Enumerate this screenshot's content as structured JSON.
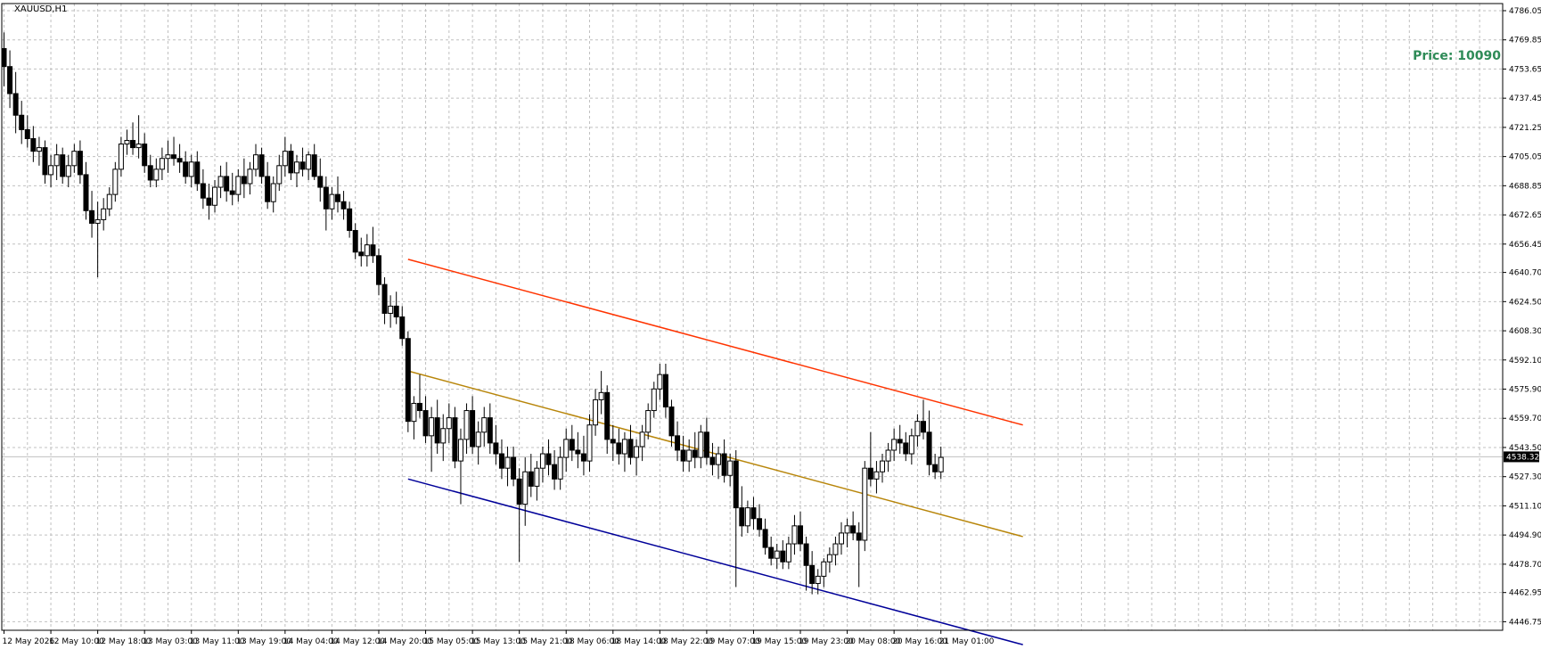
{
  "symbol_title": "XAUUSD,H1",
  "overlay": {
    "text": "Price: 10090",
    "color": "#2e8b57"
  },
  "current_price_label": "4538.32",
  "colors": {
    "background": "#ffffff",
    "grid": "#c0c0c0",
    "axis": "#000000",
    "bull_fill": "#ffffff",
    "bear_fill": "#000000",
    "candle_outline": "#000000",
    "upper_line": "#ff3300",
    "middle_line": "#b8860b",
    "lower_line": "#000099",
    "bid_line": "#c0c0c0"
  },
  "chart_data": {
    "type": "candlestick",
    "timeframe": "H1",
    "grid": true,
    "ylim": [
      4442,
      4790
    ],
    "y_ticks": [
      "4786.05",
      "4769.85",
      "4753.65",
      "4737.45",
      "4721.25",
      "4705.05",
      "4688.85",
      "4672.65",
      "4656.45",
      "4640.70",
      "4624.50",
      "4608.30",
      "4592.10",
      "4575.90",
      "4559.70",
      "4543.50",
      "4527.30",
      "4511.10",
      "4494.90",
      "4478.70",
      "4462.95",
      "4446.75"
    ],
    "x_ticks": [
      {
        "bar": 0,
        "label": "12 May 2026"
      },
      {
        "bar": 8,
        "label": "12 May 10:00"
      },
      {
        "bar": 16,
        "label": "12 May 18:00"
      },
      {
        "bar": 24,
        "label": "13 May 03:00"
      },
      {
        "bar": 32,
        "label": "13 May 11:00"
      },
      {
        "bar": 40,
        "label": "13 May 19:00"
      },
      {
        "bar": 48,
        "label": "14 May 04:00"
      },
      {
        "bar": 56,
        "label": "14 May 12:00"
      },
      {
        "bar": 64,
        "label": "14 May 20:00"
      },
      {
        "bar": 72,
        "label": "15 May 05:00"
      },
      {
        "bar": 80,
        "label": "15 May 13:00"
      },
      {
        "bar": 88,
        "label": "15 May 21:00"
      },
      {
        "bar": 96,
        "label": "18 May 06:00"
      },
      {
        "bar": 104,
        "label": "18 May 14:00"
      },
      {
        "bar": 112,
        "label": "18 May 22:00"
      },
      {
        "bar": 120,
        "label": "19 May 07:00"
      },
      {
        "bar": 128,
        "label": "19 May 15:00"
      },
      {
        "bar": 136,
        "label": "19 May 23:00"
      },
      {
        "bar": 144,
        "label": "20 May 08:00"
      },
      {
        "bar": 152,
        "label": "20 May 16:00"
      },
      {
        "bar": 160,
        "label": "21 May 01:00"
      }
    ],
    "current_price": 4538.32,
    "ohlc": [
      [
        4765,
        4774,
        4744,
        4755
      ],
      [
        4755,
        4764,
        4732,
        4740
      ],
      [
        4740,
        4752,
        4718,
        4728
      ],
      [
        4728,
        4736,
        4712,
        4720
      ],
      [
        4720,
        4728,
        4710,
        4715
      ],
      [
        4715,
        4722,
        4702,
        4708
      ],
      [
        4708,
        4716,
        4700,
        4710
      ],
      [
        4710,
        4714,
        4690,
        4695
      ],
      [
        4695,
        4706,
        4688,
        4700
      ],
      [
        4700,
        4712,
        4692,
        4706
      ],
      [
        4706,
        4710,
        4690,
        4694
      ],
      [
        4694,
        4706,
        4688,
        4700
      ],
      [
        4700,
        4712,
        4696,
        4708
      ],
      [
        4708,
        4714,
        4690,
        4695
      ],
      [
        4695,
        4702,
        4670,
        4675
      ],
      [
        4675,
        4686,
        4660,
        4668
      ],
      [
        4668,
        4680,
        4638,
        4670
      ],
      [
        4670,
        4682,
        4664,
        4676
      ],
      [
        4676,
        4688,
        4672,
        4684
      ],
      [
        4684,
        4702,
        4680,
        4698
      ],
      [
        4698,
        4716,
        4694,
        4712
      ],
      [
        4712,
        4720,
        4706,
        4714
      ],
      [
        4714,
        4724,
        4706,
        4710
      ],
      [
        4710,
        4728,
        4704,
        4712
      ],
      [
        4712,
        4718,
        4696,
        4700
      ],
      [
        4700,
        4706,
        4688,
        4692
      ],
      [
        4692,
        4704,
        4688,
        4698
      ],
      [
        4698,
        4710,
        4692,
        4704
      ],
      [
        4704,
        4714,
        4696,
        4706
      ],
      [
        4706,
        4716,
        4700,
        4704
      ],
      [
        4704,
        4712,
        4696,
        4702
      ],
      [
        4702,
        4708,
        4690,
        4694
      ],
      [
        4694,
        4706,
        4688,
        4702
      ],
      [
        4702,
        4708,
        4686,
        4690
      ],
      [
        4690,
        4698,
        4676,
        4682
      ],
      [
        4682,
        4690,
        4670,
        4678
      ],
      [
        4678,
        4692,
        4674,
        4688
      ],
      [
        4688,
        4700,
        4682,
        4694
      ],
      [
        4694,
        4702,
        4680,
        4686
      ],
      [
        4686,
        4696,
        4678,
        4684
      ],
      [
        4684,
        4698,
        4680,
        4694
      ],
      [
        4694,
        4704,
        4682,
        4690
      ],
      [
        4690,
        4702,
        4684,
        4698
      ],
      [
        4698,
        4712,
        4694,
        4706
      ],
      [
        4706,
        4710,
        4690,
        4694
      ],
      [
        4694,
        4702,
        4676,
        4680
      ],
      [
        4680,
        4694,
        4674,
        4690
      ],
      [
        4690,
        4706,
        4686,
        4700
      ],
      [
        4700,
        4716,
        4694,
        4708
      ],
      [
        4708,
        4712,
        4692,
        4696
      ],
      [
        4696,
        4706,
        4688,
        4702
      ],
      [
        4702,
        4710,
        4694,
        4698
      ],
      [
        4698,
        4708,
        4692,
        4706
      ],
      [
        4706,
        4712,
        4692,
        4694
      ],
      [
        4694,
        4704,
        4680,
        4688
      ],
      [
        4688,
        4694,
        4664,
        4676
      ],
      [
        4676,
        4688,
        4670,
        4684
      ],
      [
        4684,
        4694,
        4674,
        4680
      ],
      [
        4680,
        4686,
        4670,
        4676
      ],
      [
        4676,
        4680,
        4660,
        4664
      ],
      [
        4664,
        4668,
        4648,
        4652
      ],
      [
        4652,
        4660,
        4644,
        4650
      ],
      [
        4650,
        4662,
        4644,
        4656
      ],
      [
        4656,
        4666,
        4646,
        4650
      ],
      [
        4650,
        4654,
        4628,
        4634
      ],
      [
        4634,
        4638,
        4612,
        4618
      ],
      [
        4618,
        4628,
        4610,
        4622
      ],
      [
        4622,
        4630,
        4612,
        4616
      ],
      [
        4616,
        4622,
        4600,
        4604
      ],
      [
        4604,
        4608,
        4552,
        4558
      ],
      [
        4558,
        4572,
        4548,
        4568
      ],
      [
        4568,
        4584,
        4560,
        4564
      ],
      [
        4564,
        4572,
        4546,
        4550
      ],
      [
        4550,
        4566,
        4530,
        4560
      ],
      [
        4560,
        4570,
        4540,
        4546
      ],
      [
        4546,
        4562,
        4536,
        4554
      ],
      [
        4554,
        4568,
        4546,
        4560
      ],
      [
        4560,
        4566,
        4532,
        4536
      ],
      [
        4536,
        4554,
        4512,
        4548
      ],
      [
        4548,
        4568,
        4540,
        4564
      ],
      [
        4564,
        4572,
        4540,
        4544
      ],
      [
        4544,
        4558,
        4534,
        4552
      ],
      [
        4552,
        4566,
        4544,
        4560
      ],
      [
        4560,
        4568,
        4540,
        4546
      ],
      [
        4546,
        4556,
        4534,
        4540
      ],
      [
        4540,
        4548,
        4526,
        4532
      ],
      [
        4532,
        4544,
        4522,
        4538
      ],
      [
        4538,
        4544,
        4522,
        4526
      ],
      [
        4526,
        4532,
        4480,
        4512
      ],
      [
        4512,
        4538,
        4500,
        4530
      ],
      [
        4530,
        4540,
        4516,
        4522
      ],
      [
        4522,
        4536,
        4514,
        4532
      ],
      [
        4532,
        4544,
        4524,
        4540
      ],
      [
        4540,
        4548,
        4528,
        4534
      ],
      [
        4534,
        4542,
        4520,
        4526
      ],
      [
        4526,
        4544,
        4520,
        4538
      ],
      [
        4538,
        4554,
        4530,
        4548
      ],
      [
        4548,
        4556,
        4536,
        4542
      ],
      [
        4542,
        4552,
        4532,
        4540
      ],
      [
        4540,
        4550,
        4528,
        4536
      ],
      [
        4536,
        4562,
        4530,
        4556
      ],
      [
        4556,
        4576,
        4550,
        4570
      ],
      [
        4570,
        4586,
        4562,
        4574
      ],
      [
        4574,
        4578,
        4540,
        4548
      ],
      [
        4548,
        4556,
        4536,
        4546
      ],
      [
        4546,
        4554,
        4534,
        4540
      ],
      [
        4540,
        4552,
        4530,
        4548
      ],
      [
        4548,
        4556,
        4534,
        4538
      ],
      [
        4538,
        4548,
        4528,
        4544
      ],
      [
        4544,
        4556,
        4536,
        4552
      ],
      [
        4552,
        4568,
        4548,
        4564
      ],
      [
        4564,
        4580,
        4560,
        4576
      ],
      [
        4576,
        4590,
        4570,
        4584
      ],
      [
        4584,
        4590,
        4560,
        4566
      ],
      [
        4566,
        4570,
        4544,
        4550
      ],
      [
        4550,
        4558,
        4536,
        4542
      ],
      [
        4542,
        4550,
        4530,
        4536
      ],
      [
        4536,
        4548,
        4530,
        4542
      ],
      [
        4542,
        4552,
        4532,
        4538
      ],
      [
        4538,
        4556,
        4532,
        4552
      ],
      [
        4552,
        4560,
        4534,
        4538
      ],
      [
        4538,
        4546,
        4528,
        4534
      ],
      [
        4534,
        4544,
        4526,
        4540
      ],
      [
        4540,
        4548,
        4524,
        4528
      ],
      [
        4528,
        4540,
        4522,
        4536
      ],
      [
        4536,
        4542,
        4466,
        4510
      ],
      [
        4510,
        4522,
        4494,
        4500
      ],
      [
        4500,
        4514,
        4496,
        4510
      ],
      [
        4510,
        4516,
        4498,
        4504
      ],
      [
        4504,
        4512,
        4494,
        4498
      ],
      [
        4498,
        4504,
        4484,
        4488
      ],
      [
        4488,
        4494,
        4478,
        4482
      ],
      [
        4482,
        4490,
        4476,
        4486
      ],
      [
        4486,
        4492,
        4476,
        4480
      ],
      [
        4480,
        4494,
        4476,
        4490
      ],
      [
        4490,
        4506,
        4484,
        4500
      ],
      [
        4500,
        4508,
        4486,
        4490
      ],
      [
        4490,
        4494,
        4464,
        4478
      ],
      [
        4478,
        4486,
        4462,
        4468
      ],
      [
        4468,
        4476,
        4462,
        4472
      ],
      [
        4472,
        4482,
        4466,
        4480
      ],
      [
        4480,
        4488,
        4474,
        4484
      ],
      [
        4484,
        4494,
        4478,
        4490
      ],
      [
        4490,
        4502,
        4484,
        4496
      ],
      [
        4496,
        4504,
        4488,
        4500
      ],
      [
        4500,
        4508,
        4492,
        4496
      ],
      [
        4496,
        4502,
        4466,
        4492
      ],
      [
        4492,
        4536,
        4486,
        4532
      ],
      [
        4532,
        4552,
        4522,
        4526
      ],
      [
        4526,
        4536,
        4518,
        4530
      ],
      [
        4530,
        4540,
        4524,
        4536
      ],
      [
        4536,
        4546,
        4530,
        4542
      ],
      [
        4542,
        4554,
        4536,
        4548
      ],
      [
        4548,
        4556,
        4540,
        4546
      ],
      [
        4546,
        4552,
        4536,
        4540
      ],
      [
        4540,
        4554,
        4534,
        4550
      ],
      [
        4550,
        4562,
        4544,
        4558
      ],
      [
        4558,
        4570,
        4548,
        4552
      ],
      [
        4552,
        4564,
        4528,
        4534
      ],
      [
        4534,
        4540,
        4526,
        4530
      ],
      [
        4530,
        4544,
        4526,
        4538
      ]
    ],
    "channel_lines": [
      {
        "color_key": "upper_line",
        "from": {
          "bar": 69,
          "price": 4648
        },
        "to": {
          "bar": 174,
          "price": 4556
        }
      },
      {
        "color_key": "middle_line",
        "from": {
          "bar": 69,
          "price": 4586
        },
        "to": {
          "bar": 174,
          "price": 4494
        }
      },
      {
        "color_key": "lower_line",
        "from": {
          "bar": 69,
          "price": 4526
        },
        "to": {
          "bar": 174,
          "price": 4434
        }
      }
    ]
  }
}
